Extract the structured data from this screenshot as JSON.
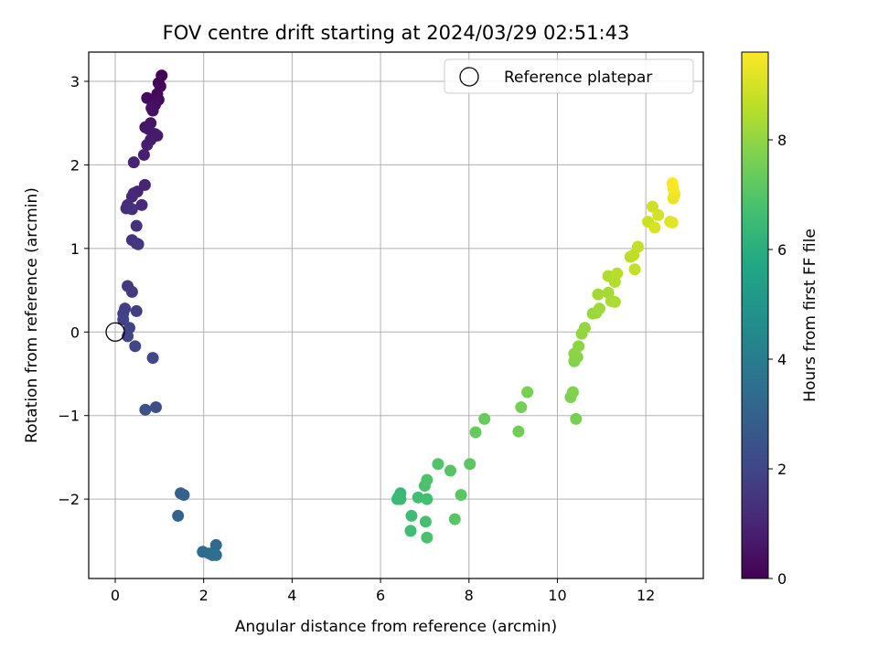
{
  "chart_data": {
    "type": "scatter",
    "title": "FOV centre drift starting at 2024/03/29 02:51:43",
    "xlabel": "Angular distance from reference (arcmin)",
    "ylabel": "Rotation from reference (arcmin)",
    "xlim": [
      -0.6,
      13.3
    ],
    "ylim": [
      -2.95,
      3.35
    ],
    "xticks": [
      0,
      2,
      4,
      6,
      8,
      10,
      12
    ],
    "yticks": [
      -2,
      -1,
      0,
      1,
      2,
      3
    ],
    "grid": true,
    "legend": {
      "placement": "top-right",
      "entries": [
        "Reference platepar"
      ]
    },
    "reference_point": {
      "x": 0,
      "y": 0
    },
    "colorbar": {
      "label": "Hours from first FF file",
      "range": [
        0,
        9.6
      ],
      "ticks": [
        0,
        2,
        4,
        6,
        8
      ],
      "colormap": "viridis"
    },
    "points": [
      {
        "x": 1.05,
        "y": 3.07,
        "h": 0.05
      },
      {
        "x": 0.98,
        "y": 2.98,
        "h": 0.1
      },
      {
        "x": 1.02,
        "y": 2.94,
        "h": 0.15
      },
      {
        "x": 0.95,
        "y": 2.85,
        "h": 0.2
      },
      {
        "x": 0.72,
        "y": 2.8,
        "h": 0.25
      },
      {
        "x": 0.98,
        "y": 2.78,
        "h": 0.3
      },
      {
        "x": 0.9,
        "y": 2.72,
        "h": 0.35
      },
      {
        "x": 0.85,
        "y": 2.65,
        "h": 0.4
      },
      {
        "x": 0.82,
        "y": 2.68,
        "h": 0.45
      },
      {
        "x": 0.8,
        "y": 2.5,
        "h": 0.5
      },
      {
        "x": 0.68,
        "y": 2.45,
        "h": 0.55
      },
      {
        "x": 0.75,
        "y": 2.43,
        "h": 0.6
      },
      {
        "x": 0.9,
        "y": 2.37,
        "h": 0.65
      },
      {
        "x": 0.95,
        "y": 2.35,
        "h": 0.7
      },
      {
        "x": 0.8,
        "y": 2.3,
        "h": 0.75
      },
      {
        "x": 0.72,
        "y": 2.24,
        "h": 0.8
      },
      {
        "x": 0.65,
        "y": 2.12,
        "h": 0.85
      },
      {
        "x": 0.42,
        "y": 2.03,
        "h": 0.9
      },
      {
        "x": 0.67,
        "y": 1.76,
        "h": 0.95
      },
      {
        "x": 0.5,
        "y": 1.68,
        "h": 1.0
      },
      {
        "x": 0.42,
        "y": 1.66,
        "h": 1.05
      },
      {
        "x": 0.38,
        "y": 1.62,
        "h": 1.1
      },
      {
        "x": 0.6,
        "y": 1.52,
        "h": 1.15
      },
      {
        "x": 0.28,
        "y": 1.52,
        "h": 1.2
      },
      {
        "x": 0.25,
        "y": 1.48,
        "h": 1.25
      },
      {
        "x": 0.38,
        "y": 1.47,
        "h": 1.3
      },
      {
        "x": 0.48,
        "y": 1.27,
        "h": 1.35
      },
      {
        "x": 0.38,
        "y": 1.1,
        "h": 1.4
      },
      {
        "x": 0.48,
        "y": 1.06,
        "h": 1.45
      },
      {
        "x": 0.52,
        "y": 1.05,
        "h": 1.5
      },
      {
        "x": 0.28,
        "y": 0.55,
        "h": 1.6
      },
      {
        "x": 0.38,
        "y": 0.48,
        "h": 1.65
      },
      {
        "x": 0.22,
        "y": 0.28,
        "h": 1.7
      },
      {
        "x": 0.48,
        "y": 0.25,
        "h": 1.75
      },
      {
        "x": 0.18,
        "y": 0.22,
        "h": 1.8
      },
      {
        "x": 0.18,
        "y": 0.15,
        "h": 1.85
      },
      {
        "x": 0.32,
        "y": 0.05,
        "h": 1.9
      },
      {
        "x": 0.28,
        "y": -0.05,
        "h": 1.95
      },
      {
        "x": 0.45,
        "y": -0.17,
        "h": 2.0
      },
      {
        "x": 0.85,
        "y": -0.31,
        "h": 2.1
      },
      {
        "x": 0.92,
        "y": -0.9,
        "h": 2.3
      },
      {
        "x": 0.68,
        "y": -0.93,
        "h": 2.35
      },
      {
        "x": 1.48,
        "y": -1.93,
        "h": 2.9
      },
      {
        "x": 1.55,
        "y": -1.95,
        "h": 2.95
      },
      {
        "x": 1.42,
        "y": -2.2,
        "h": 3.0
      },
      {
        "x": 2.28,
        "y": -2.55,
        "h": 3.3
      },
      {
        "x": 1.98,
        "y": -2.63,
        "h": 3.35
      },
      {
        "x": 2.12,
        "y": -2.65,
        "h": 3.4
      },
      {
        "x": 2.2,
        "y": -2.67,
        "h": 3.45
      },
      {
        "x": 2.28,
        "y": -2.67,
        "h": 3.5
      },
      {
        "x": 6.45,
        "y": -1.93,
        "h": 6.4
      },
      {
        "x": 6.4,
        "y": -1.98,
        "h": 6.45
      },
      {
        "x": 6.45,
        "y": -2.0,
        "h": 6.5
      },
      {
        "x": 6.38,
        "y": -2.0,
        "h": 6.5
      },
      {
        "x": 6.7,
        "y": -2.2,
        "h": 6.55
      },
      {
        "x": 6.68,
        "y": -2.38,
        "h": 6.6
      },
      {
        "x": 6.85,
        "y": -1.98,
        "h": 6.65
      },
      {
        "x": 7.05,
        "y": -2.0,
        "h": 6.7
      },
      {
        "x": 7.02,
        "y": -2.27,
        "h": 6.75
      },
      {
        "x": 7.05,
        "y": -2.46,
        "h": 6.8
      },
      {
        "x": 7.0,
        "y": -1.84,
        "h": 6.85
      },
      {
        "x": 7.05,
        "y": -1.77,
        "h": 6.9
      },
      {
        "x": 7.3,
        "y": -1.58,
        "h": 6.95
      },
      {
        "x": 7.58,
        "y": -1.66,
        "h": 7.0
      },
      {
        "x": 7.68,
        "y": -2.24,
        "h": 7.05
      },
      {
        "x": 7.82,
        "y": -1.95,
        "h": 7.1
      },
      {
        "x": 8.02,
        "y": -1.58,
        "h": 7.15
      },
      {
        "x": 8.15,
        "y": -1.2,
        "h": 7.3
      },
      {
        "x": 8.35,
        "y": -1.04,
        "h": 7.35
      },
      {
        "x": 9.12,
        "y": -1.19,
        "h": 7.5
      },
      {
        "x": 9.18,
        "y": -0.9,
        "h": 7.55
      },
      {
        "x": 9.32,
        "y": -0.72,
        "h": 7.6
      },
      {
        "x": 10.42,
        "y": -1.04,
        "h": 7.65
      },
      {
        "x": 10.3,
        "y": -0.78,
        "h": 7.7
      },
      {
        "x": 10.35,
        "y": -0.72,
        "h": 7.75
      },
      {
        "x": 10.38,
        "y": -0.35,
        "h": 7.8
      },
      {
        "x": 10.45,
        "y": -0.3,
        "h": 7.85
      },
      {
        "x": 10.38,
        "y": -0.26,
        "h": 7.9
      },
      {
        "x": 10.48,
        "y": -0.17,
        "h": 7.95
      },
      {
        "x": 10.55,
        "y": -0.02,
        "h": 8.0
      },
      {
        "x": 10.62,
        "y": 0.05,
        "h": 8.05
      },
      {
        "x": 10.8,
        "y": 0.22,
        "h": 8.1
      },
      {
        "x": 10.88,
        "y": 0.23,
        "h": 8.15
      },
      {
        "x": 10.95,
        "y": 0.28,
        "h": 8.2
      },
      {
        "x": 10.92,
        "y": 0.45,
        "h": 8.25
      },
      {
        "x": 11.15,
        "y": 0.47,
        "h": 8.3
      },
      {
        "x": 11.22,
        "y": 0.37,
        "h": 8.35
      },
      {
        "x": 11.3,
        "y": 0.36,
        "h": 8.4
      },
      {
        "x": 11.15,
        "y": 0.67,
        "h": 8.45
      },
      {
        "x": 11.3,
        "y": 0.6,
        "h": 8.5
      },
      {
        "x": 11.35,
        "y": 0.7,
        "h": 8.55
      },
      {
        "x": 11.65,
        "y": 0.9,
        "h": 8.6
      },
      {
        "x": 11.72,
        "y": 0.92,
        "h": 8.65
      },
      {
        "x": 11.82,
        "y": 1.02,
        "h": 8.7
      },
      {
        "x": 11.75,
        "y": 0.75,
        "h": 8.75
      },
      {
        "x": 12.05,
        "y": 1.32,
        "h": 8.85
      },
      {
        "x": 12.15,
        "y": 1.5,
        "h": 8.9
      },
      {
        "x": 12.28,
        "y": 1.4,
        "h": 8.95
      },
      {
        "x": 12.2,
        "y": 1.25,
        "h": 9.0
      },
      {
        "x": 12.55,
        "y": 1.32,
        "h": 9.1
      },
      {
        "x": 12.6,
        "y": 1.31,
        "h": 9.2
      },
      {
        "x": 12.62,
        "y": 1.6,
        "h": 9.3
      },
      {
        "x": 12.65,
        "y": 1.65,
        "h": 9.4
      },
      {
        "x": 12.62,
        "y": 1.72,
        "h": 9.5
      },
      {
        "x": 12.6,
        "y": 1.78,
        "h": 9.6
      }
    ]
  }
}
